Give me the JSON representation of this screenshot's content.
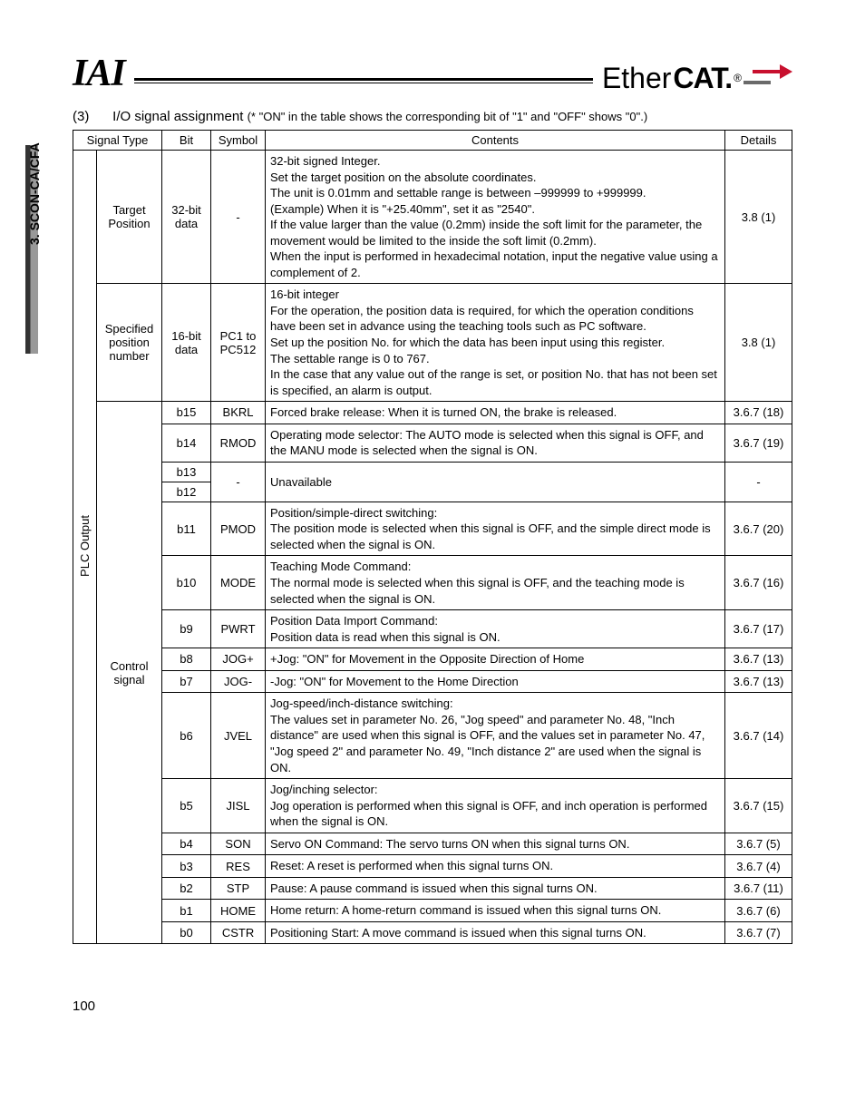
{
  "sidebar": {
    "label": "3. SCON-CA/CFA"
  },
  "header": {
    "logo_iai": "IAI",
    "logo_ether_1": "Ether",
    "logo_ether_2": "CAT.",
    "arrow_color_tail": "#6a6a6a",
    "arrow_color_head": "#c8102e"
  },
  "intro": {
    "num": "(3)",
    "title": "I/O signal assignment",
    "note": "(* \"ON\" in the table shows the corresponding bit of \"1\" and \"OFF\" shows \"0\".)"
  },
  "table": {
    "headers": {
      "signal_type": "Signal Type",
      "bit": "Bit",
      "symbol": "Symbol",
      "contents": "Contents",
      "details": "Details"
    },
    "plc_output_label": "PLC Output",
    "rows": [
      {
        "sig2": "Target Position",
        "bit": "32-bit data",
        "symbol": "-",
        "contents": "32-bit signed Integer.\nSet the target position on the absolute coordinates.\nThe unit is 0.01mm and settable range is between –999999 to +999999.\n(Example) When it is \"+25.40mm\", set it as \"2540\".\nIf the value larger than the value (0.2mm) inside the soft limit for the parameter, the movement would be limited to the inside the soft limit (0.2mm).\nWhen the input is performed in hexadecimal notation, input the negative value using a complement of 2.",
        "details": "3.8 (1)"
      },
      {
        "sig2": "Specified position number",
        "bit": "16-bit data",
        "symbol": "PC1 to PC512",
        "contents": "16-bit integer\nFor the operation, the position data is required, for which the operation conditions have been set in advance using the teaching tools such as PC software.\nSet up the position No. for which the data has been input using this register.\nThe settable range is 0 to 767.\nIn the case that any value out of the range is set, or position No. that has not been set is specified, an alarm is output.",
        "details": "3.8 (1)"
      },
      {
        "sig2": "Control signal",
        "bit": "b15",
        "symbol": "BKRL",
        "contents": "Forced brake release: When it is turned ON, the brake is released.",
        "details": "3.6.7 (18)"
      },
      {
        "bit": "b14",
        "symbol": "RMOD",
        "contents": "Operating mode selector: The AUTO mode is selected when this signal is OFF, and the MANU mode is selected when the signal is ON.",
        "details": "3.6.7 (19)"
      },
      {
        "bit": "b13",
        "symbol": "-",
        "contents": "Unavailable",
        "details": "-",
        "merge_next_bit": true
      },
      {
        "bit": "b12"
      },
      {
        "bit": "b11",
        "symbol": "PMOD",
        "contents": "Position/simple-direct switching:\nThe position mode is selected when this signal is OFF, and the simple direct mode is selected when the signal is ON.",
        "details": "3.6.7 (20)"
      },
      {
        "bit": "b10",
        "symbol": "MODE",
        "contents": "Teaching Mode Command:\nThe normal mode is selected when this signal is OFF, and the teaching mode is selected when the signal is ON.",
        "details": "3.6.7 (16)"
      },
      {
        "bit": "b9",
        "symbol": "PWRT",
        "contents": "Position Data Import Command:\nPosition data is read when this signal is ON.",
        "details": "3.6.7 (17)"
      },
      {
        "bit": "b8",
        "symbol": "JOG+",
        "contents": "+Jog: \"ON\" for Movement in the Opposite Direction of Home",
        "details": "3.6.7 (13)"
      },
      {
        "bit": "b7",
        "symbol": "JOG-",
        "contents": "-Jog: \"ON\" for Movement to the Home Direction",
        "details": "3.6.7 (13)"
      },
      {
        "bit": "b6",
        "symbol": "JVEL",
        "contents": "Jog-speed/inch-distance switching:\nThe values set in parameter No. 26, \"Jog speed\" and parameter No. 48, \"Inch distance\" are used when this signal is OFF, and the values set in parameter No. 47, \"Jog speed 2\" and parameter No. 49, \"Inch distance 2\" are used when the signal is ON.",
        "details": "3.6.7 (14)"
      },
      {
        "bit": "b5",
        "symbol": "JISL",
        "contents": "Jog/inching selector:\nJog operation is performed when this signal is OFF, and inch operation is performed when the signal is ON.",
        "details": "3.6.7 (15)"
      },
      {
        "bit": "b4",
        "symbol": "SON",
        "contents": "Servo ON Command: The servo turns ON when this signal turns ON.",
        "details": "3.6.7 (5)"
      },
      {
        "bit": "b3",
        "symbol": "RES",
        "contents": "Reset: A reset is performed when this signal turns ON.",
        "details": "3.6.7 (4)"
      },
      {
        "bit": "b2",
        "symbol": "STP",
        "contents": "Pause: A pause command is issued when this signal turns ON.",
        "details": "3.6.7 (11)"
      },
      {
        "bit": "b1",
        "symbol": "HOME",
        "contents": "Home return: A home-return command is issued when this signal turns ON.",
        "details": "3.6.7 (6)"
      },
      {
        "bit": "b0",
        "symbol": "CSTR",
        "contents": "Positioning Start: A move command is issued when this signal turns ON.",
        "details": "3.6.7 (7)"
      }
    ]
  },
  "page_number": "100"
}
